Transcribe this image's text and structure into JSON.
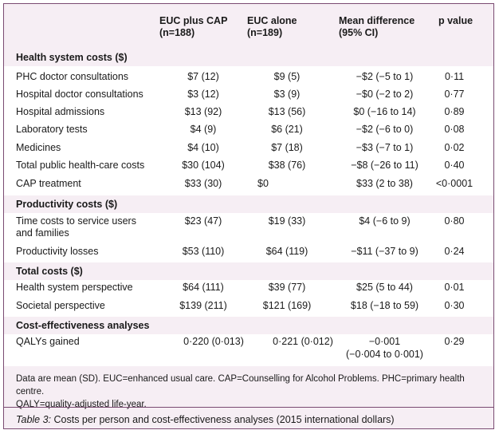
{
  "headers": {
    "col1_l1": "EUC plus CAP",
    "col1_l2": "(n=188)",
    "col2_l1": "EUC alone",
    "col2_l2": "(n=189)",
    "col3_l1": "Mean difference",
    "col3_l2": "(95% CI)",
    "col4_l1": "p value"
  },
  "sections": {
    "health": "Health system costs ($)",
    "productivity": "Productivity costs ($)",
    "total": "Total costs ($)",
    "ce": "Cost-effectiveness analyses"
  },
  "rows": [
    {
      "label": "PHC doctor consultations",
      "a": "$7 (12)",
      "b": "$9 (5)",
      "diff": "−$2 (−5 to 1)",
      "p": "0·11"
    },
    {
      "label": "Hospital doctor consultations",
      "a": "$3 (12)",
      "b": "$3 (9)",
      "diff": "−$0 (−2 to 2)",
      "p": "0·77"
    },
    {
      "label": "Hospital admissions",
      "a": "$13 (92)",
      "b": "$13 (56)",
      "diff": "$0 (−16 to 14)",
      "p": "0·89"
    },
    {
      "label": "Laboratory tests",
      "a": "$4 (9)",
      "b": "$6 (21)",
      "diff": "−$2 (−6 to 0)",
      "p": "0·08"
    },
    {
      "label": "Medicines",
      "a": "$4 (10)",
      "b": "$7 (18)",
      "diff": "−$3 (−7 to 1)",
      "p": "0·02"
    },
    {
      "label": "Total public health-care costs",
      "a": "$30 (104)",
      "b": "$38 (76)",
      "diff": "−$8 (−26 to 11)",
      "p": "0·40"
    },
    {
      "label": "CAP treatment",
      "a": "$33 (30)",
      "b": "$0",
      "diff": "$33 (2 to 38)",
      "p": "<0·0001"
    },
    {
      "label": "Time costs to service users and families",
      "a": "$23 (47)",
      "b": "$19 (33)",
      "diff": "$4 (−6 to 9)",
      "p": "0·80"
    },
    {
      "label": "Productivity losses",
      "a": "$53 (110)",
      "b": "$64 (119)",
      "diff": "−$11 (−37 to 9)",
      "p": "0·24"
    },
    {
      "label": "Health system perspective",
      "a": "$64 (111)",
      "b": "$39 (77)",
      "diff": "$25 (5 to 44)",
      "p": "0·01"
    },
    {
      "label": "Societal perspective",
      "a": "$139 (211)",
      "b": "$121 (169)",
      "diff": "$18 (−18 to 59)",
      "p": "0·30"
    },
    {
      "label": "QALYs gained",
      "a": "0·220 (0·013)",
      "b": "0·221 (0·012)",
      "diff": "−0·001",
      "diff2": "(−0·004 to 0·001)",
      "p": "0·29"
    }
  ],
  "footnote_l1": "Data are mean (SD). EUC=enhanced usual care. CAP=Counselling for Alcohol Problems. PHC=primary health centre.",
  "footnote_l2": "QALY=quality-adjusted life-year.",
  "caption_label": "Table 3:",
  "caption_text": " Costs per person and cost-effectiveness analyses (2015 international dollars)"
}
